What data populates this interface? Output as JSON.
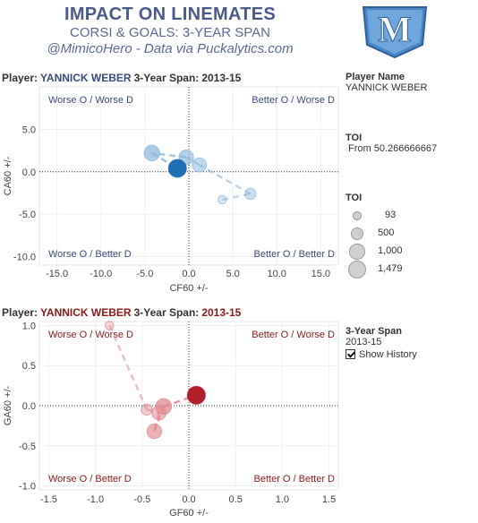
{
  "header": {
    "title": "IMPACT ON LINEMATES",
    "subtitle": "CORSI & GOALS: 3-YEAR SPAN",
    "credit": "@MimicoHero - Data via Puckalytics.com"
  },
  "logo": {
    "letter": "M"
  },
  "panel1": {
    "title_prefix": "Player:",
    "player": "YANNICK WEBER",
    "span_label": "3-Year Span:",
    "span_value": "2013-15"
  },
  "panel2": {
    "title_prefix": "Player:",
    "player": "YANNICK WEBER",
    "span_label": "3-Year Span:",
    "span_value": "2013-15"
  },
  "right_panel": {
    "player_name_label": "Player Name",
    "player_name_value": "YANNICK WEBER",
    "toi_filter_label": "TOI",
    "toi_filter_value": "From 50.266666667",
    "toi_legend_label": "TOI",
    "toi_legend_values": [
      "93",
      "500",
      "1,000",
      "1,479"
    ],
    "span_label": "3-Year Span",
    "span_value": "2013-15",
    "show_history_label": "Show History"
  },
  "colors": {
    "corsi_current": "#1f6fb5",
    "corsi_history": "#8fb9dc",
    "goals_current": "#b21e2a",
    "goals_history": "#e08a92",
    "quad_corsi": "#3a4a7a",
    "quad_goals": "#8b1a1a"
  },
  "chart_data": [
    {
      "type": "scatter",
      "xlabel": "CF60 +/-",
      "ylabel": "CA60 +/-",
      "xlim": [
        -17,
        17
      ],
      "ylim": [
        -11,
        10
      ],
      "xticks": [
        "-15.0",
        "-10.0",
        "-5.0",
        "0.0",
        "5.0",
        "10.0",
        "15.0"
      ],
      "xtick_values": [
        -15,
        -10,
        -5,
        0,
        5,
        10,
        15
      ],
      "yticks": [
        "5.0",
        "0.0",
        "-5.0",
        "-10.0"
      ],
      "ytick_values": [
        5,
        0,
        -5,
        -10
      ],
      "quadrants": {
        "top_left": "Worse O / Worse D",
        "top_right": "Better O / Worse D",
        "bottom_left": "Worse O / Better D",
        "bottom_right": "Better O / Better D"
      },
      "points": [
        {
          "x": 3.8,
          "y": -3.3,
          "toi": 93,
          "current": false
        },
        {
          "x": 7.0,
          "y": -2.6,
          "toi": 300,
          "current": false
        },
        {
          "x": 1.2,
          "y": 0.8,
          "toi": 700,
          "current": false
        },
        {
          "x": -0.3,
          "y": 1.7,
          "toi": 800,
          "current": false
        },
        {
          "x": -4.2,
          "y": 2.2,
          "toi": 1000,
          "current": false
        },
        {
          "x": -1.3,
          "y": 0.4,
          "toi": 1479,
          "current": true
        }
      ]
    },
    {
      "type": "scatter",
      "xlabel": "GF60 +/-",
      "ylabel": "GA60 +/-",
      "xlim": [
        -1.6,
        1.6
      ],
      "ylim": [
        -1.05,
        1.05
      ],
      "xticks": [
        "-1.5",
        "-1.0",
        "-0.5",
        "0.0",
        "0.5",
        "1.0",
        "1.5"
      ],
      "xtick_values": [
        -1.5,
        -1.0,
        -0.5,
        0.0,
        0.5,
        1.0,
        1.5
      ],
      "yticks": [
        "1.0",
        "0.5",
        "0.0",
        "-0.5",
        "-1.0"
      ],
      "ytick_values": [
        1.0,
        0.5,
        0.0,
        -0.5,
        -1.0
      ],
      "quadrants": {
        "top_left": "Worse O / Worse D",
        "top_right": "Better O / Worse D",
        "bottom_left": "Worse O / Better D",
        "bottom_right": "Better O / Better D"
      },
      "points": [
        {
          "x": -0.85,
          "y": 1.0,
          "toi": 93,
          "current": false
        },
        {
          "x": -0.45,
          "y": -0.05,
          "toi": 300,
          "current": false
        },
        {
          "x": -0.32,
          "y": -0.09,
          "toi": 700,
          "current": false
        },
        {
          "x": -0.37,
          "y": -0.32,
          "toi": 800,
          "current": false
        },
        {
          "x": -0.27,
          "y": -0.01,
          "toi": 1000,
          "current": false
        },
        {
          "x": 0.08,
          "y": 0.13,
          "toi": 1479,
          "current": true
        }
      ]
    }
  ]
}
